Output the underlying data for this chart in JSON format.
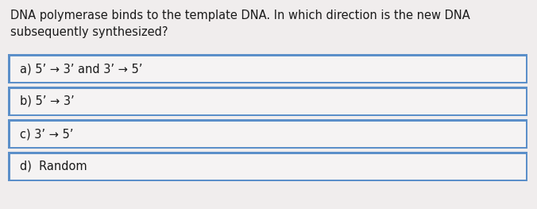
{
  "question": "DNA polymerase binds to the template DNA. In which direction is the new DNA\nsubsequently synthesized?",
  "options": [
    "a) 5’ → 3’ and 3’ → 5’",
    "b) 5’ → 3’",
    "c) 3’ → 5’",
    "d)  Random"
  ],
  "background_color": "#f0eded",
  "box_bg_color": "#f5f3f3",
  "box_border_color": "#5b8fc9",
  "text_color": "#1a1a1a",
  "question_fontsize": 10.5,
  "option_fontsize": 10.5,
  "fig_width": 6.76,
  "fig_height": 2.63,
  "dpi": 100
}
